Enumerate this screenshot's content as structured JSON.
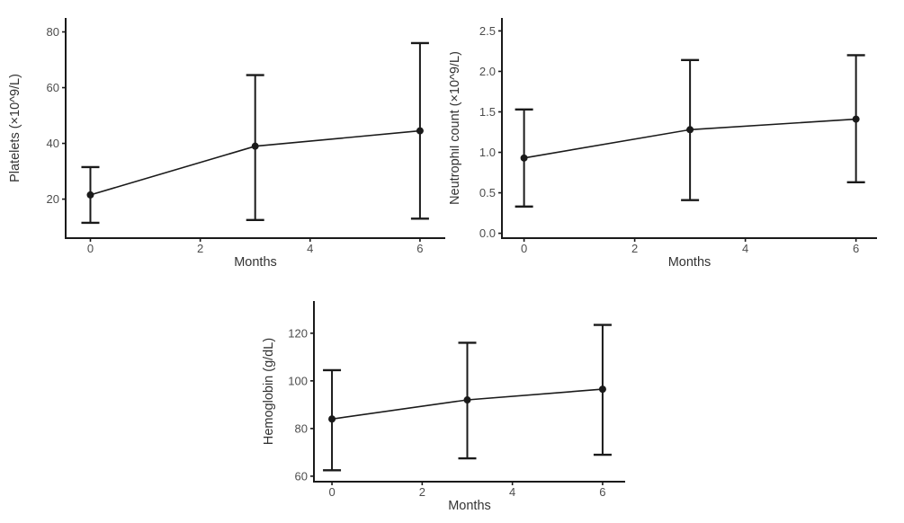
{
  "page": {
    "background_color": "#ffffff",
    "line_color": "#1a1a1a",
    "tick_text_color": "#4d4d4d",
    "axis_title_color": "#333333"
  },
  "chart_data": [
    {
      "id": "platelets",
      "type": "line",
      "title": "",
      "xlabel": "Months",
      "ylabel": "Platelets (×10^9/L)",
      "x": [
        0,
        3,
        6
      ],
      "series": [
        {
          "name": "mean",
          "values": [
            21.5,
            39,
            44.5
          ]
        }
      ],
      "error_low": [
        11.5,
        12.5,
        13
      ],
      "error_high": [
        31.5,
        64.5,
        76
      ],
      "xticks": [
        0,
        2,
        4,
        6
      ],
      "xtick_labels": [
        "0",
        "2",
        "4",
        "6"
      ],
      "yticks": [
        20,
        40,
        60,
        80
      ],
      "ytick_labels": [
        "20",
        "40",
        "60",
        "80"
      ],
      "xlim": [
        -0.45,
        6.46
      ],
      "ylim": [
        6,
        85
      ],
      "grid": false,
      "legend": "none",
      "marker": "circle",
      "color": "#1a1a1a"
    },
    {
      "id": "neutrophil",
      "type": "line",
      "title": "",
      "xlabel": "Months",
      "ylabel": "Neutrophil count (×10^9/L)",
      "x": [
        0,
        3,
        6
      ],
      "series": [
        {
          "name": "mean",
          "values": [
            0.93,
            1.28,
            1.41
          ]
        }
      ],
      "error_low": [
        0.33,
        0.41,
        0.63
      ],
      "error_high": [
        1.53,
        2.14,
        2.2
      ],
      "xticks": [
        0,
        2,
        4,
        6
      ],
      "xtick_labels": [
        "0",
        "2",
        "4",
        "6"
      ],
      "yticks": [
        0,
        0.5,
        1,
        1.5,
        2,
        2.5
      ],
      "ytick_labels": [
        "0.0",
        "0.5",
        "1.0",
        "1.5",
        "2.0",
        "2.5"
      ],
      "xlim": [
        -0.4,
        6.38
      ],
      "ylim": [
        -0.06,
        2.66
      ],
      "grid": false,
      "legend": "none",
      "marker": "circle",
      "color": "#1a1a1a"
    },
    {
      "id": "hemoglobin",
      "type": "line",
      "title": "",
      "xlabel": "Months",
      "ylabel": "Hemoglobin (g/dL)",
      "x": [
        0,
        3,
        6
      ],
      "series": [
        {
          "name": "mean",
          "values": [
            84,
            92,
            96.5
          ]
        }
      ],
      "error_low": [
        62.5,
        67.5,
        69
      ],
      "error_high": [
        104.5,
        116,
        123.5
      ],
      "xticks": [
        0,
        2,
        4,
        6
      ],
      "xtick_labels": [
        "0",
        "2",
        "4",
        "6"
      ],
      "yticks": [
        60,
        80,
        100,
        120
      ],
      "ytick_labels": [
        "60",
        "80",
        "100",
        "120"
      ],
      "xlim": [
        -0.4,
        6.5
      ],
      "ylim": [
        57.7,
        133.5
      ],
      "grid": false,
      "legend": "none",
      "marker": "circle",
      "color": "#1a1a1a"
    }
  ]
}
